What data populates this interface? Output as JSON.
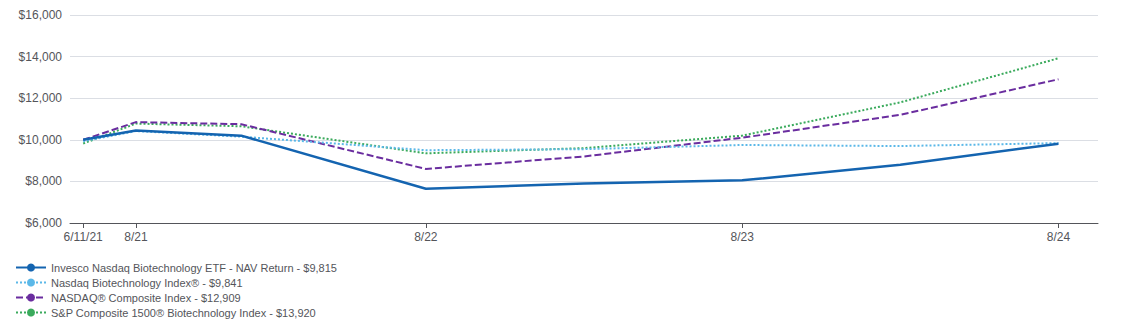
{
  "chart_data": {
    "type": "line",
    "x": [
      0,
      2,
      6,
      13,
      19,
      25,
      31,
      37
    ],
    "series": [
      {
        "name": "Invesco Nasdaq Biotechnology ETF - NAV Return - $9,815",
        "color": "#1464b0",
        "line_style": "solid",
        "values": [
          10000,
          10450,
          10200,
          7650,
          7900,
          8050,
          8800,
          9815
        ]
      },
      {
        "name": "Nasdaq Biotechnology Index® - $9,841",
        "color": "#5bb8e8",
        "line_style": "dotted",
        "values": [
          9930,
          10420,
          10150,
          9500,
          9550,
          9750,
          9700,
          9841
        ]
      },
      {
        "name": "NASDAQ® Composite Index - $12,909",
        "color": "#6a2d9f",
        "line_style": "dashed",
        "values": [
          10000,
          10850,
          10750,
          8600,
          9200,
          10100,
          11200,
          12909
        ]
      },
      {
        "name": "S&P Composite 1500® Biotechnology Index - $13,920",
        "color": "#3aaa5c",
        "line_style": "dotted",
        "values": [
          9820,
          10780,
          10650,
          9350,
          9600,
          10200,
          11800,
          13920
        ]
      }
    ],
    "xlim": [
      -0.5,
      38.5
    ],
    "xticks": [
      {
        "value": 0,
        "label": "6/11/21"
      },
      {
        "value": 2,
        "label": "8/21"
      },
      {
        "value": 13,
        "label": "8/22"
      },
      {
        "value": 25,
        "label": "8/23"
      },
      {
        "value": 37,
        "label": "8/24"
      }
    ],
    "ylim": [
      6000,
      16000
    ],
    "yticks": [
      {
        "value": 6000,
        "label": "$6,000"
      },
      {
        "value": 8000,
        "label": "$8,000"
      },
      {
        "value": 10000,
        "label": "$10,000"
      },
      {
        "value": 12000,
        "label": "$12,000"
      },
      {
        "value": 14000,
        "label": "$14,000"
      },
      {
        "value": 16000,
        "label": "$16,000"
      }
    ],
    "grid": true,
    "legend": "bottom"
  }
}
